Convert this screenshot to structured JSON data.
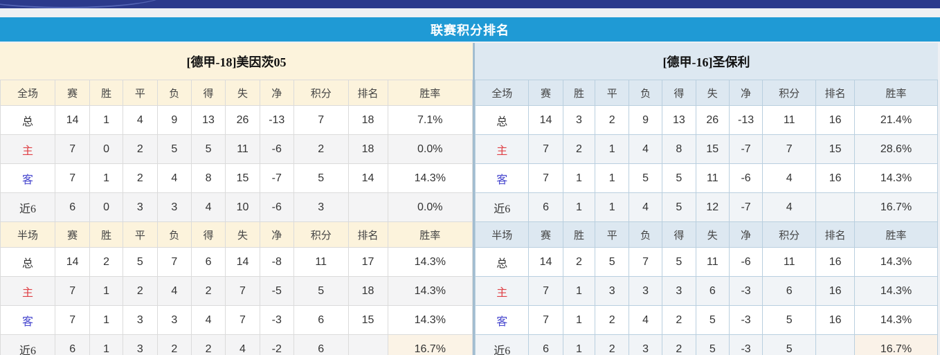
{
  "title_bar": {
    "title": "联赛积分排名"
  },
  "colors": {
    "top_bar_navy": "#2c3a8c",
    "accent_blue": "#1f9ad5",
    "cream_header": "#fcf3dc",
    "blue_header": "#dde8f1",
    "points_orange": "#e8512c",
    "rank_blue": "#4186ca",
    "rate_red": "#e7332c",
    "home_label_red": "#df4046",
    "away_label_blue": "#4646ce"
  },
  "left_table": {
    "team_title": "[德甲-18]美因茨05",
    "sections": [
      {
        "title": "全场",
        "columns": [
          "赛",
          "胜",
          "平",
          "负",
          "得",
          "失",
          "净",
          "积分",
          "排名",
          "胜率"
        ],
        "rows": [
          {
            "label": "总",
            "label_style": "plain",
            "values": [
              "14",
              "1",
              "4",
              "9",
              "13",
              "26",
              "-13"
            ],
            "points": "7",
            "rank": "18",
            "win_rate": "7.1%",
            "highlight_rate": false
          },
          {
            "label": "主",
            "label_style": "home",
            "values": [
              "7",
              "0",
              "2",
              "5",
              "5",
              "11",
              "-6"
            ],
            "points": "2",
            "rank": "18",
            "win_rate": "0.0%",
            "highlight_rate": false
          },
          {
            "label": "客",
            "label_style": "away",
            "values": [
              "7",
              "1",
              "2",
              "4",
              "8",
              "15",
              "-7"
            ],
            "points": "5",
            "rank": "14",
            "win_rate": "14.3%",
            "highlight_rate": false
          },
          {
            "label": "近6",
            "label_style": "plain",
            "values": [
              "6",
              "0",
              "3",
              "3",
              "4",
              "10",
              "-6"
            ],
            "points": "3",
            "rank": "",
            "win_rate": "0.0%",
            "highlight_rate": false
          }
        ]
      },
      {
        "title": "半场",
        "columns": [
          "赛",
          "胜",
          "平",
          "负",
          "得",
          "失",
          "净",
          "积分",
          "排名",
          "胜率"
        ],
        "rows": [
          {
            "label": "总",
            "label_style": "plain",
            "values": [
              "14",
              "2",
              "5",
              "7",
              "6",
              "14",
              "-8"
            ],
            "points": "11",
            "rank": "17",
            "win_rate": "14.3%",
            "highlight_rate": false
          },
          {
            "label": "主",
            "label_style": "home",
            "values": [
              "7",
              "1",
              "2",
              "4",
              "2",
              "7",
              "-5"
            ],
            "points": "5",
            "rank": "18",
            "win_rate": "14.3%",
            "highlight_rate": false
          },
          {
            "label": "客",
            "label_style": "away",
            "values": [
              "7",
              "1",
              "3",
              "3",
              "4",
              "7",
              "-3"
            ],
            "points": "6",
            "rank": "15",
            "win_rate": "14.3%",
            "highlight_rate": false
          },
          {
            "label": "近6",
            "label_style": "plain",
            "values": [
              "6",
              "1",
              "3",
              "2",
              "2",
              "4",
              "-2"
            ],
            "points": "6",
            "rank": "",
            "win_rate": "16.7%",
            "highlight_rate": true
          }
        ]
      }
    ]
  },
  "right_table": {
    "team_title": "[德甲-16]圣保利",
    "sections": [
      {
        "title": "全场",
        "columns": [
          "赛",
          "胜",
          "平",
          "负",
          "得",
          "失",
          "净",
          "积分",
          "排名",
          "胜率"
        ],
        "rows": [
          {
            "label": "总",
            "label_style": "plain",
            "values": [
              "14",
              "3",
              "2",
              "9",
              "13",
              "26",
              "-13"
            ],
            "points": "11",
            "rank": "16",
            "win_rate": "21.4%",
            "highlight_rate": false
          },
          {
            "label": "主",
            "label_style": "home",
            "values": [
              "7",
              "2",
              "1",
              "4",
              "8",
              "15",
              "-7"
            ],
            "points": "7",
            "rank": "15",
            "win_rate": "28.6%",
            "highlight_rate": false
          },
          {
            "label": "客",
            "label_style": "away",
            "values": [
              "7",
              "1",
              "1",
              "5",
              "5",
              "11",
              "-6"
            ],
            "points": "4",
            "rank": "16",
            "win_rate": "14.3%",
            "highlight_rate": false
          },
          {
            "label": "近6",
            "label_style": "plain",
            "values": [
              "6",
              "1",
              "1",
              "4",
              "5",
              "12",
              "-7"
            ],
            "points": "4",
            "rank": "",
            "win_rate": "16.7%",
            "highlight_rate": false
          }
        ]
      },
      {
        "title": "半场",
        "columns": [
          "赛",
          "胜",
          "平",
          "负",
          "得",
          "失",
          "净",
          "积分",
          "排名",
          "胜率"
        ],
        "rows": [
          {
            "label": "总",
            "label_style": "plain",
            "values": [
              "14",
              "2",
              "5",
              "7",
              "5",
              "11",
              "-6"
            ],
            "points": "11",
            "rank": "16",
            "win_rate": "14.3%",
            "highlight_rate": false
          },
          {
            "label": "主",
            "label_style": "home",
            "values": [
              "7",
              "1",
              "3",
              "3",
              "3",
              "6",
              "-3"
            ],
            "points": "6",
            "rank": "16",
            "win_rate": "14.3%",
            "highlight_rate": false
          },
          {
            "label": "客",
            "label_style": "away",
            "values": [
              "7",
              "1",
              "2",
              "4",
              "2",
              "5",
              "-3"
            ],
            "points": "5",
            "rank": "16",
            "win_rate": "14.3%",
            "highlight_rate": false
          },
          {
            "label": "近6",
            "label_style": "plain",
            "values": [
              "6",
              "1",
              "2",
              "3",
              "2",
              "5",
              "-3"
            ],
            "points": "5",
            "rank": "",
            "win_rate": "16.7%",
            "highlight_rate": true
          }
        ]
      }
    ]
  }
}
